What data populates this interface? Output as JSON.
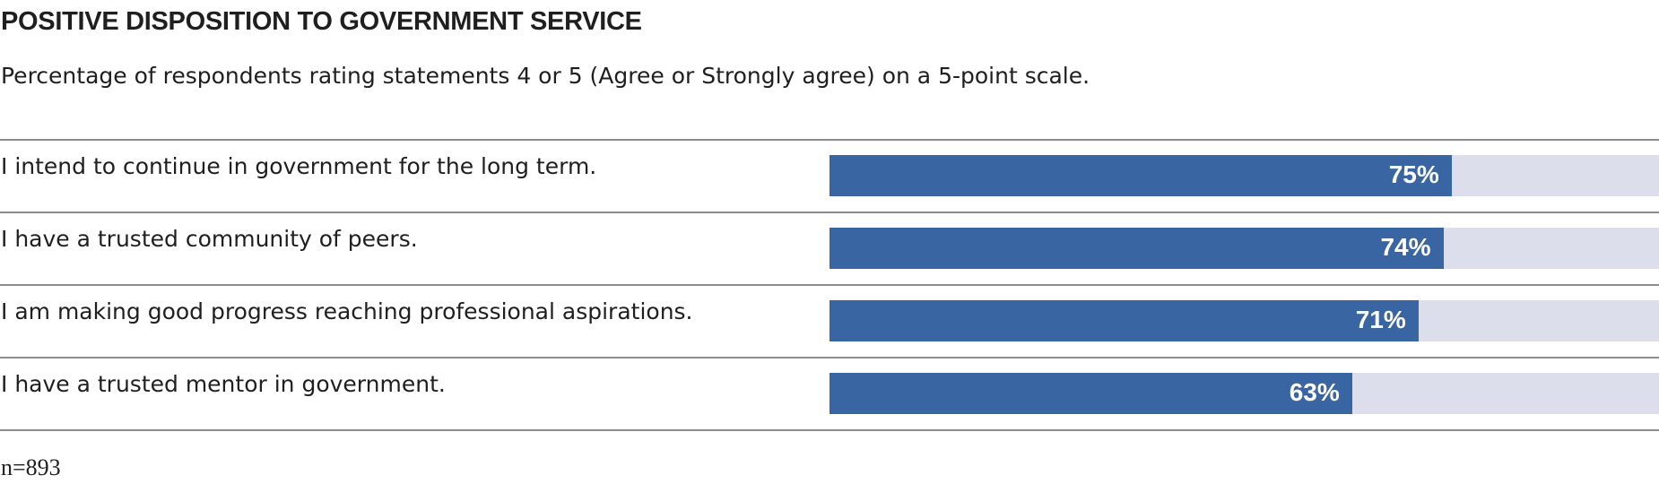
{
  "chart_data": {
    "type": "bar",
    "orientation": "horizontal",
    "title": "POSITIVE DISPOSITION TO GOVERNMENT SERVICE",
    "subtitle": "Percentage of respondents rating statements 4 or 5 (Agree or Strongly agree) on a 5-point scale.",
    "categories": [
      "I intend to continue in government for the long term.",
      "I have a trusted community of peers.",
      "I am making good progress reaching professional aspirations.",
      "I have a trusted mentor in government."
    ],
    "values": [
      75,
      74,
      71,
      63
    ],
    "value_labels": [
      "75%",
      "74%",
      "71%",
      "63%"
    ],
    "xlim": [
      0,
      100
    ],
    "unit": "%",
    "grid": false,
    "note": "n=893",
    "colors": {
      "bar": "#3a65a3",
      "track": "#dcdeec",
      "rule": "#8c8c8c",
      "text": "#1f1f1f"
    }
  }
}
